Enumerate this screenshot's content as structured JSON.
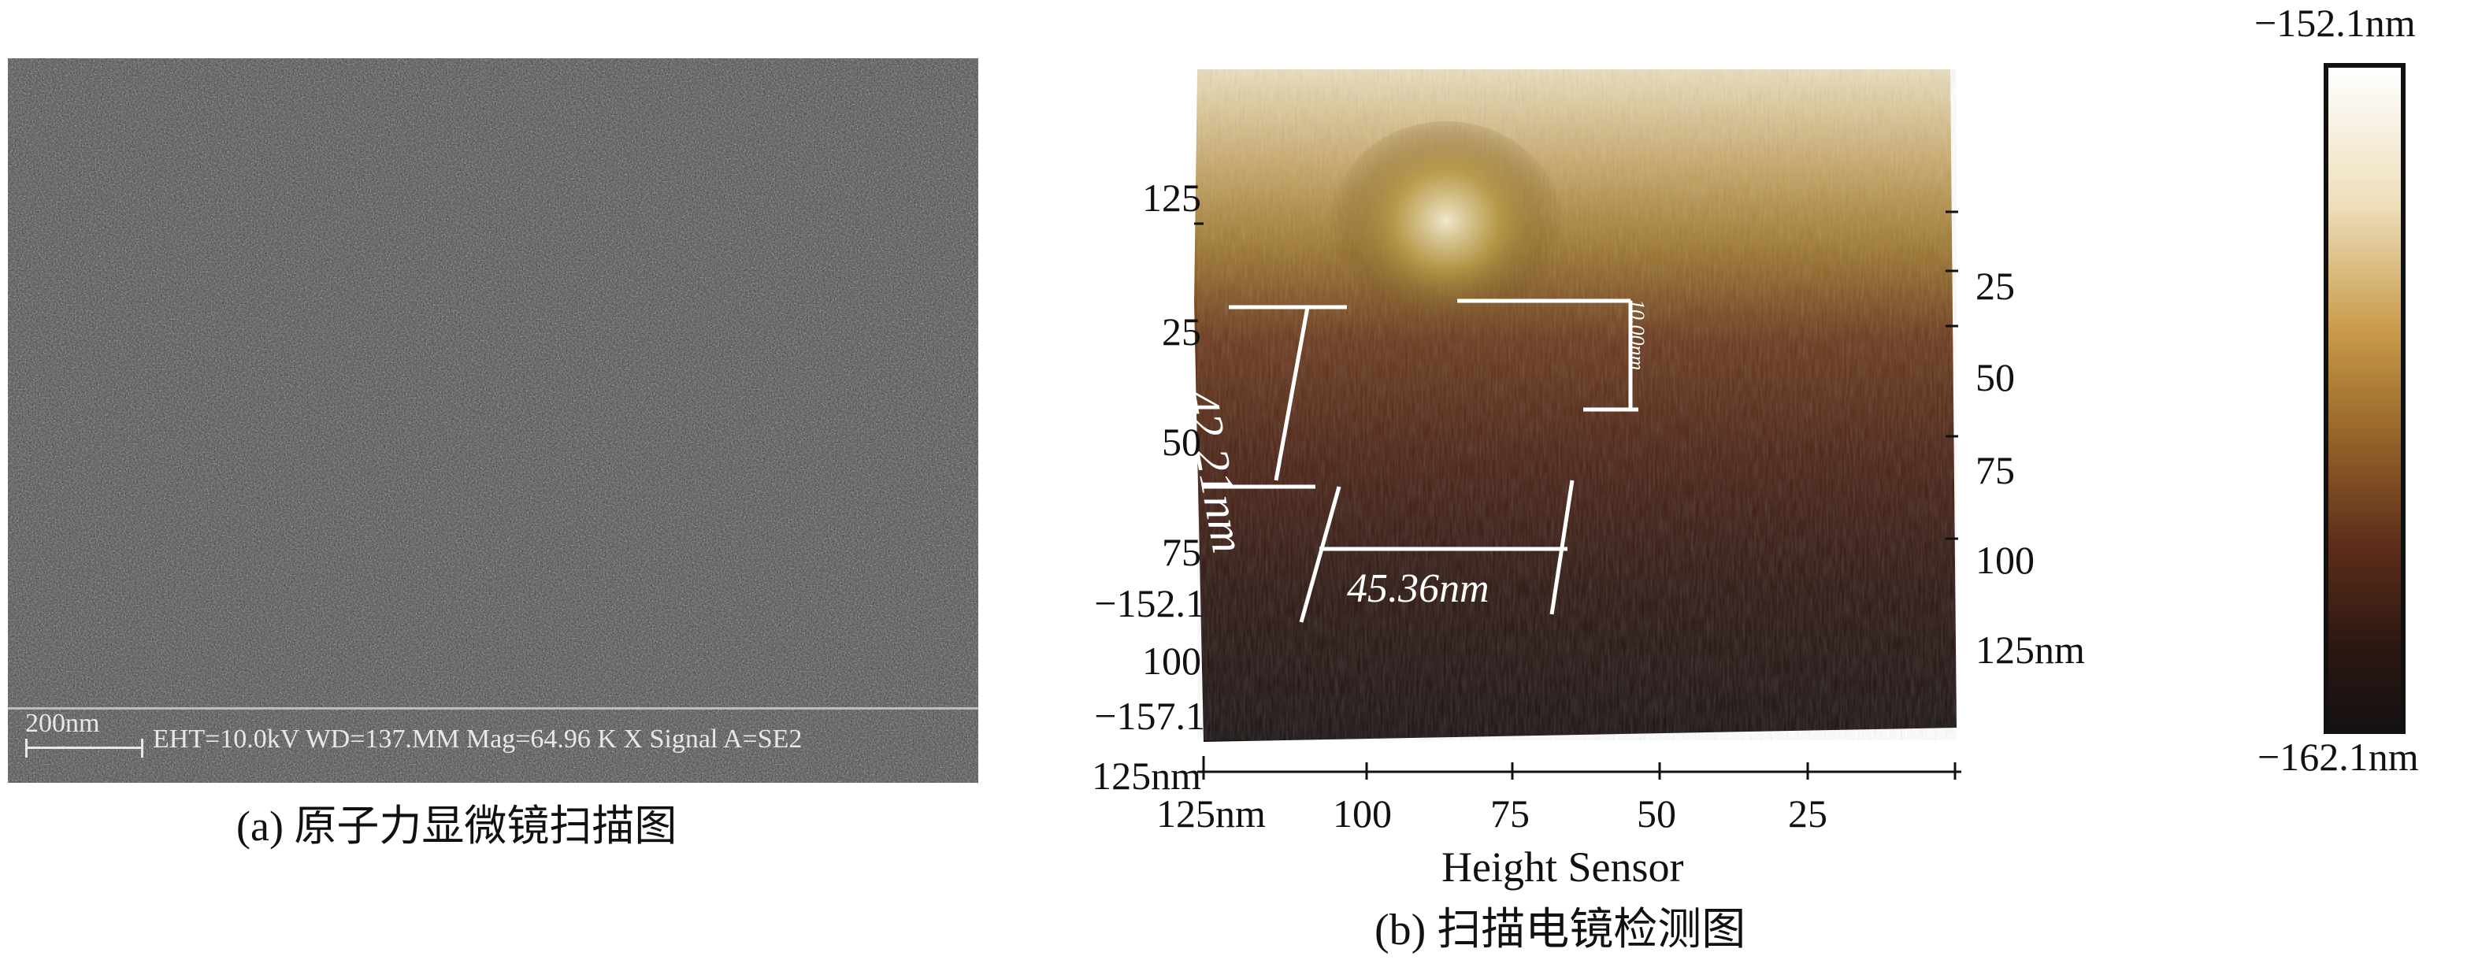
{
  "panel_a": {
    "scale_bar": "200nm",
    "info": "EHT=10.0kV    WD=137.MM  Mag=64.96 K X  Signal A=SE2",
    "caption": "(a) 原子力显微镜扫描图"
  },
  "panel_b": {
    "left_axis_ticks": [
      "125",
      "25",
      "50",
      "75",
      "−152.1",
      "100",
      "−157.1",
      "125nm"
    ],
    "right_axis_ticks": [
      "25",
      "50",
      "75",
      "100",
      "125nm"
    ],
    "bottom_axis_ticks": [
      "125nm",
      "100",
      "75",
      "50",
      "25"
    ],
    "axis_title": "Height Sensor",
    "measure_width": "45.36nm",
    "measure_diag": "42.21nm",
    "measure_height": "10.00nm",
    "caption": "(b) 扫描电镜检测图"
  },
  "colorbar": {
    "max_label": "−152.1nm",
    "min_label": "−162.1nm",
    "colors": [
      "#ffffff",
      "#efe0bd",
      "#c89a48",
      "#9b6a2c",
      "#5e2e1a",
      "#2a1711",
      "#151112"
    ]
  }
}
